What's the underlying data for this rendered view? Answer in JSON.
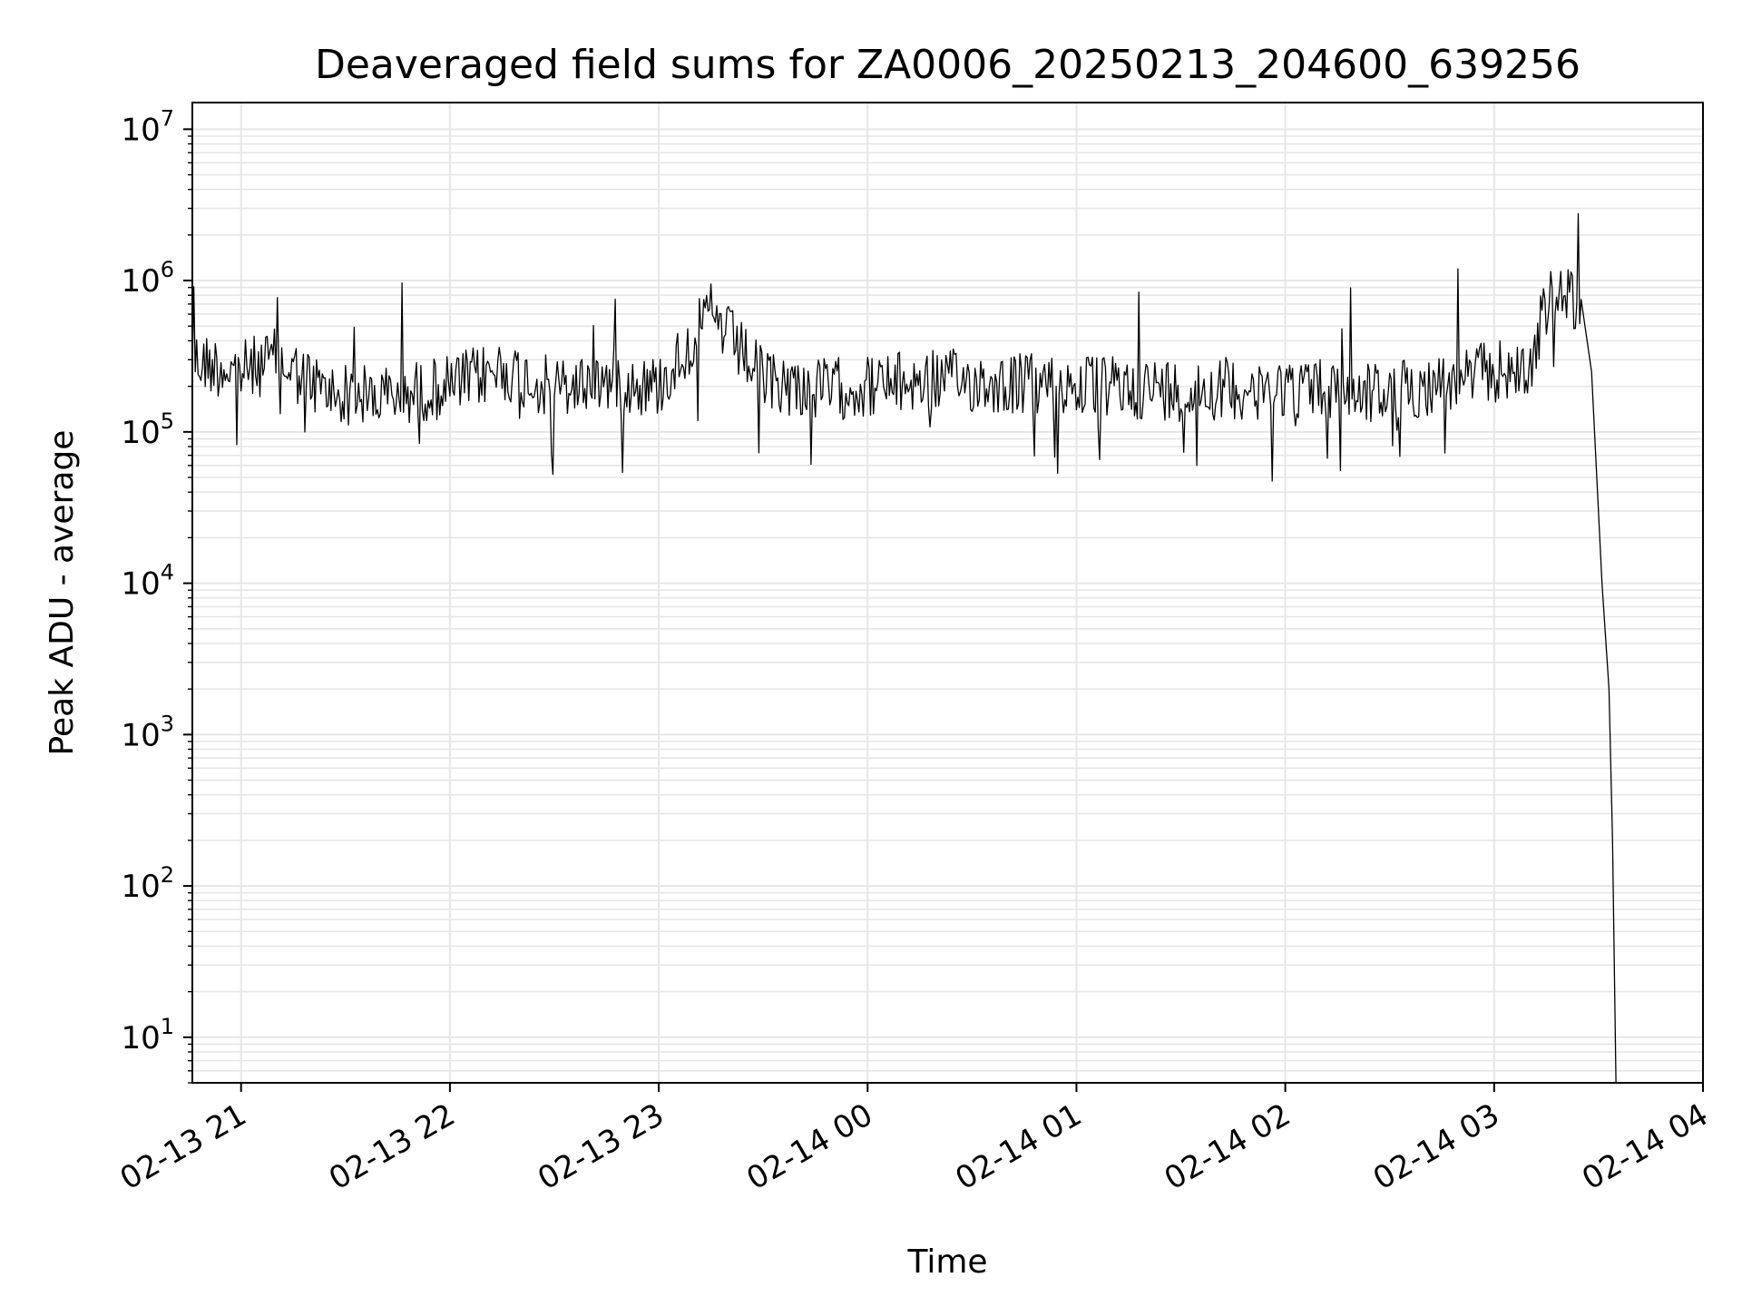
{
  "chart_data": {
    "type": "line",
    "title": "Deaveraged field sums for ZA0006_20250213_204600_639256",
    "xlabel": "Time",
    "ylabel": "Peak ADU - average",
    "y_scale": "log",
    "ylim": [
      5,
      15000000
    ],
    "xlim": [
      "2025-02-13 20:46",
      "2025-02-14 04:00"
    ],
    "grid": true,
    "line_color": "#000000",
    "grid_color": "#e6e6e6",
    "x_ticks": [
      {
        "value": "2025-02-13 21:00",
        "label": "02-13 21"
      },
      {
        "value": "2025-02-13 22:00",
        "label": "02-13 22"
      },
      {
        "value": "2025-02-13 23:00",
        "label": "02-13 23"
      },
      {
        "value": "2025-02-14 00:00",
        "label": "02-14 00"
      },
      {
        "value": "2025-02-14 01:00",
        "label": "02-14 01"
      },
      {
        "value": "2025-02-14 02:00",
        "label": "02-14 02"
      },
      {
        "value": "2025-02-14 03:00",
        "label": "02-14 03"
      },
      {
        "value": "2025-02-14 04:00",
        "label": "02-14 04"
      }
    ],
    "y_ticks": [
      {
        "value": 10,
        "base": "10",
        "exp": "1"
      },
      {
        "value": 100,
        "base": "10",
        "exp": "2"
      },
      {
        "value": 1000,
        "base": "10",
        "exp": "3"
      },
      {
        "value": 10000,
        "base": "10",
        "exp": "4"
      },
      {
        "value": 100000,
        "base": "10",
        "exp": "5"
      },
      {
        "value": 1000000,
        "base": "10",
        "exp": "6"
      },
      {
        "value": 10000000,
        "base": "10",
        "exp": "7"
      }
    ],
    "series": [
      {
        "x": [
          "2025-02-13 20:46",
          "2025-02-13 21:00",
          "2025-02-13 21:10",
          "2025-02-13 21:25",
          "2025-02-13 21:40",
          "2025-02-13 22:00",
          "2025-02-13 22:15",
          "2025-02-13 22:30",
          "2025-02-13 22:45",
          "2025-02-13 23:00",
          "2025-02-13 23:15",
          "2025-02-13 23:30",
          "2025-02-13 23:45",
          "2025-02-14 00:00",
          "2025-02-14 00:20",
          "2025-02-14 00:40",
          "2025-02-14 01:00",
          "2025-02-14 01:30",
          "2025-02-14 02:00",
          "2025-02-14 02:30",
          "2025-02-14 03:00",
          "2025-02-14 03:10",
          "2025-02-14 03:15",
          "2025-02-14 03:20",
          "2025-02-14 03:25",
          "2025-02-14 03:28",
          "2025-02-14 03:31",
          "2025-02-14 03:33",
          "2025-02-14 03:34",
          "2025-02-14 03:35"
        ],
        "y": [
          300000,
          250000,
          300000,
          180000,
          170000,
          200000,
          260000,
          190000,
          220000,
          200000,
          600000,
          220000,
          190000,
          200000,
          220000,
          210000,
          200000,
          190000,
          200000,
          180000,
          250000,
          250000,
          700000,
          800000,
          750000,
          250000,
          10000,
          2000,
          200,
          5
        ]
      }
    ]
  }
}
